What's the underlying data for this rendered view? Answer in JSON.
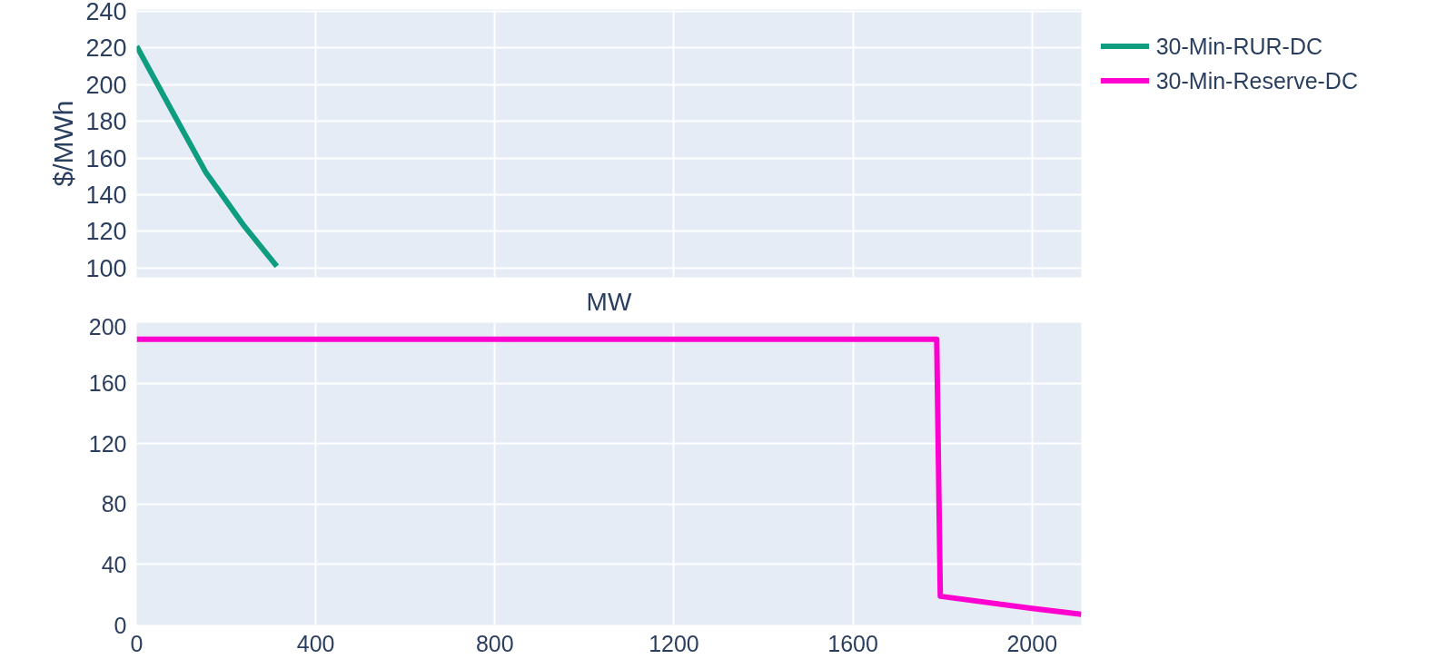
{
  "chart_data": [
    {
      "type": "line",
      "ylabel": "$/MWh",
      "xlabel": "MW",
      "xlim": [
        0,
        2110
      ],
      "xticks": [
        0,
        400,
        800,
        1200,
        1600,
        2000
      ],
      "ylim": [
        95,
        241
      ],
      "yticks": [
        100,
        120,
        140,
        160,
        180,
        200,
        220,
        240
      ],
      "grid": true,
      "tick_labels": "y",
      "legend": "right",
      "series": [
        {
          "name": "30-Min-RUR-DC",
          "color": "#0f9d80",
          "x": [
            0,
            85,
            155,
            240,
            313
          ],
          "values": [
            221,
            183,
            152,
            123,
            101
          ]
        }
      ]
    },
    {
      "type": "line",
      "xlim": [
        0,
        2110
      ],
      "xticks": [
        0,
        400,
        800,
        1200,
        1600,
        2000
      ],
      "ylim": [
        0,
        200
      ],
      "yticks": [
        0,
        40,
        80,
        120,
        160,
        200
      ],
      "grid": true,
      "legend": "right",
      "series": [
        {
          "name": "30-Min-Reserve-DC",
          "color": "#ff00d0",
          "x": [
            0,
            1787,
            1795,
            2000,
            2110
          ],
          "values": [
            189,
            189,
            19,
            11,
            7
          ]
        }
      ]
    }
  ]
}
